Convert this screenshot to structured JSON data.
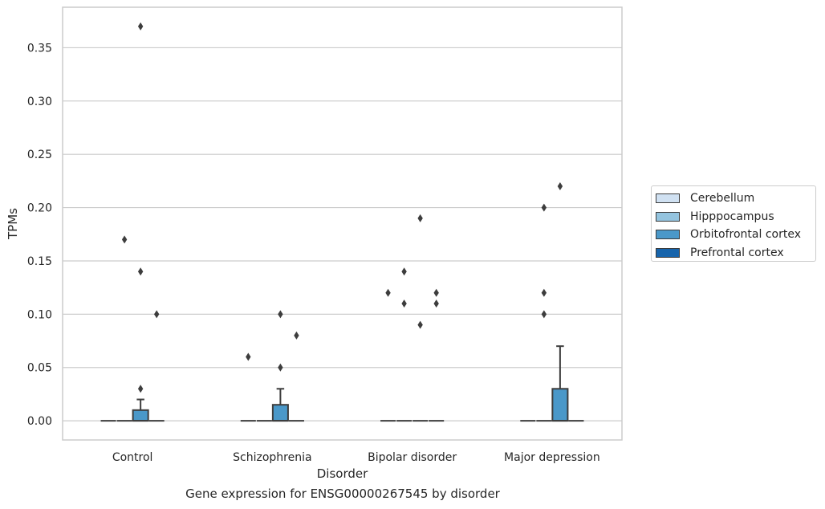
{
  "caption": "Gene expression for ENSG00000267545 by disorder",
  "chart_data": {
    "type": "box",
    "xlabel": "Disorder",
    "ylabel": "TPMs",
    "ylim": [
      -0.018,
      0.388
    ],
    "yticks": [
      0.0,
      0.05,
      0.1,
      0.15,
      0.2,
      0.25,
      0.3,
      0.35
    ],
    "ytick_labels": [
      "0.00",
      "0.05",
      "0.10",
      "0.15",
      "0.20",
      "0.25",
      "0.30",
      "0.35"
    ],
    "grid": true,
    "legend_position": "right-outside",
    "categories": [
      "Control",
      "Schizophrenia",
      "Bipolar disorder",
      "Major depression"
    ],
    "series": [
      {
        "name": "Cerebellum",
        "color": "#d0e1f2",
        "boxes": [
          {
            "q1": 0,
            "median": 0,
            "q3": 0,
            "whisker_low": 0,
            "whisker_high": 0,
            "fliers": []
          },
          {
            "q1": 0,
            "median": 0,
            "q3": 0,
            "whisker_low": 0,
            "whisker_high": 0,
            "fliers": [
              0.06
            ]
          },
          {
            "q1": 0,
            "median": 0,
            "q3": 0,
            "whisker_low": 0,
            "whisker_high": 0,
            "fliers": [
              0.12
            ]
          },
          {
            "q1": 0,
            "median": 0,
            "q3": 0,
            "whisker_low": 0,
            "whisker_high": 0,
            "fliers": []
          }
        ]
      },
      {
        "name": "Hipppocampus",
        "color": "#94c4df",
        "boxes": [
          {
            "q1": 0,
            "median": 0,
            "q3": 0,
            "whisker_low": 0,
            "whisker_high": 0,
            "fliers": [
              0.17
            ]
          },
          {
            "q1": 0,
            "median": 0,
            "q3": 0,
            "whisker_low": 0,
            "whisker_high": 0,
            "fliers": []
          },
          {
            "q1": 0,
            "median": 0,
            "q3": 0,
            "whisker_low": 0,
            "whisker_high": 0,
            "fliers": [
              0.14,
              0.11
            ]
          },
          {
            "q1": 0,
            "median": 0,
            "q3": 0,
            "whisker_low": 0,
            "whisker_high": 0,
            "fliers": [
              0.2,
              0.12,
              0.1
            ]
          }
        ]
      },
      {
        "name": "Orbitofrontal cortex",
        "color": "#4a98c9",
        "boxes": [
          {
            "q1": 0,
            "median": 0,
            "q3": 0.01,
            "whisker_low": 0,
            "whisker_high": 0.02,
            "fliers": [
              0.37,
              0.14,
              0.03
            ]
          },
          {
            "q1": 0,
            "median": 0,
            "q3": 0.015,
            "whisker_low": 0,
            "whisker_high": 0.03,
            "fliers": [
              0.1,
              0.05
            ]
          },
          {
            "q1": 0,
            "median": 0,
            "q3": 0,
            "whisker_low": 0,
            "whisker_high": 0,
            "fliers": [
              0.19,
              0.09
            ]
          },
          {
            "q1": 0,
            "median": 0,
            "q3": 0.03,
            "whisker_low": 0,
            "whisker_high": 0.07,
            "fliers": [
              0.22
            ]
          }
        ]
      },
      {
        "name": "Prefrontal cortex",
        "color": "#1764ab",
        "boxes": [
          {
            "q1": 0,
            "median": 0,
            "q3": 0,
            "whisker_low": 0,
            "whisker_high": 0,
            "fliers": [
              0.1
            ]
          },
          {
            "q1": 0,
            "median": 0,
            "q3": 0,
            "whisker_low": 0,
            "whisker_high": 0,
            "fliers": [
              0.08
            ]
          },
          {
            "q1": 0,
            "median": 0,
            "q3": 0,
            "whisker_low": 0,
            "whisker_high": 0,
            "fliers": [
              0.12,
              0.11
            ]
          },
          {
            "q1": 0,
            "median": 0,
            "q3": 0,
            "whisker_low": 0,
            "whisker_high": 0,
            "fliers": []
          }
        ]
      }
    ]
  }
}
